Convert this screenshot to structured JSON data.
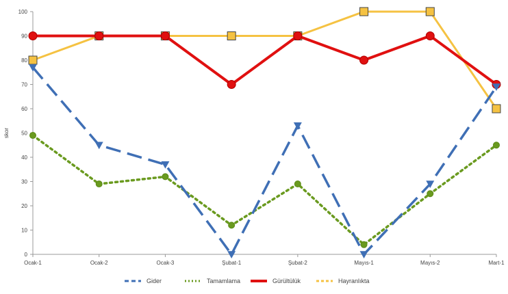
{
  "chart_data": {
    "type": "line",
    "title": "",
    "xlabel": "",
    "ylabel": "skor",
    "ylim": [
      0,
      100
    ],
    "yticks": [
      0,
      10,
      20,
      30,
      40,
      50,
      60,
      70,
      80,
      90,
      100
    ],
    "grid": false,
    "legend_position": "bottom",
    "categories": [
      "Ocak-1",
      "Ocak-2",
      "Ocak-3",
      "Şubat-1",
      "Şubat-2",
      "Mayıs-1",
      "Mayıs-2",
      "Mart-1"
    ],
    "series": [
      {
        "name": "Gider",
        "values": [
          77,
          45,
          37,
          0,
          53,
          0,
          29,
          69
        ],
        "color": "#3f6fb5",
        "style": "dash",
        "marker": "triangle-down"
      },
      {
        "name": "Tamamlama",
        "values": [
          49,
          29,
          32,
          12,
          29,
          4,
          25,
          45
        ],
        "color": "#6a9a1f",
        "style": "dot",
        "marker": "circle"
      },
      {
        "name": "Gürültülük",
        "values": [
          90,
          90,
          90,
          70,
          90,
          80,
          90,
          70
        ],
        "color": "#e01010",
        "style": "solid",
        "marker": "circle"
      },
      {
        "name": "Hayranlıkta",
        "values": [
          80,
          90,
          90,
          90,
          90,
          100,
          100,
          60
        ],
        "color": "#f5c242",
        "style": "solid",
        "marker": "square"
      }
    ]
  }
}
